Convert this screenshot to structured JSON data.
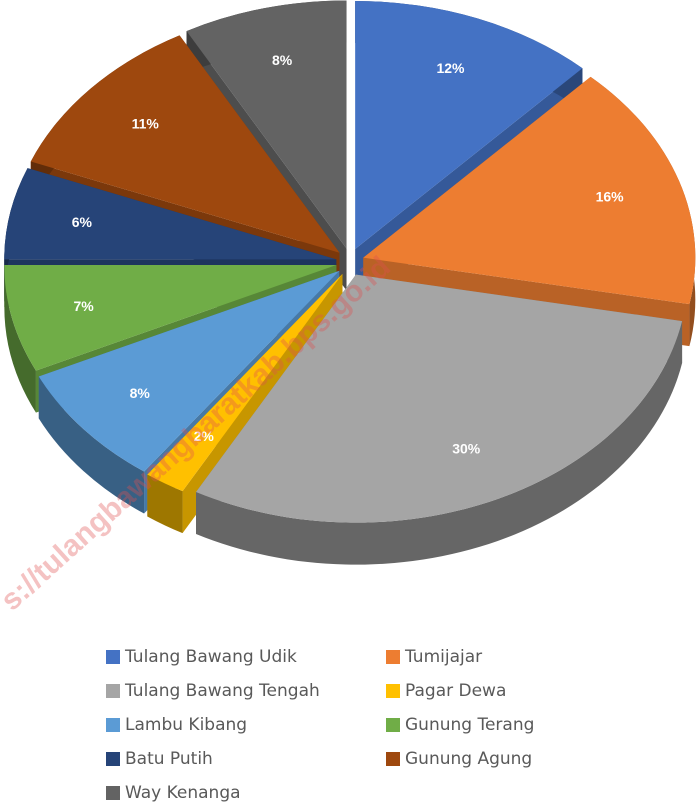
{
  "chart_data": {
    "type": "pie3d",
    "categories": [
      "Tulang Bawang Udik",
      "Tumijajar",
      "Tulang Bawang Tengah",
      "Pagar Dewa",
      "Lambu Kibang",
      "Gunung Terang",
      "Batu Putih",
      "Gunung Agung",
      "Way Kenanga"
    ],
    "values": [
      12,
      16,
      30,
      2,
      8,
      7,
      6,
      11,
      8
    ],
    "value_labels": [
      "12%",
      "16%",
      "30%",
      "2%",
      "8%",
      "7%",
      "6%",
      "11%",
      "8%"
    ],
    "colors": [
      "#4472c4",
      "#ed7d31",
      "#a5a5a5",
      "#ffc000",
      "#5b9bd5",
      "#70ad47",
      "#264478",
      "#9e480e",
      "#636363"
    ],
    "watermark": "s://tulangbawangbaratkab.bps.go.id"
  }
}
